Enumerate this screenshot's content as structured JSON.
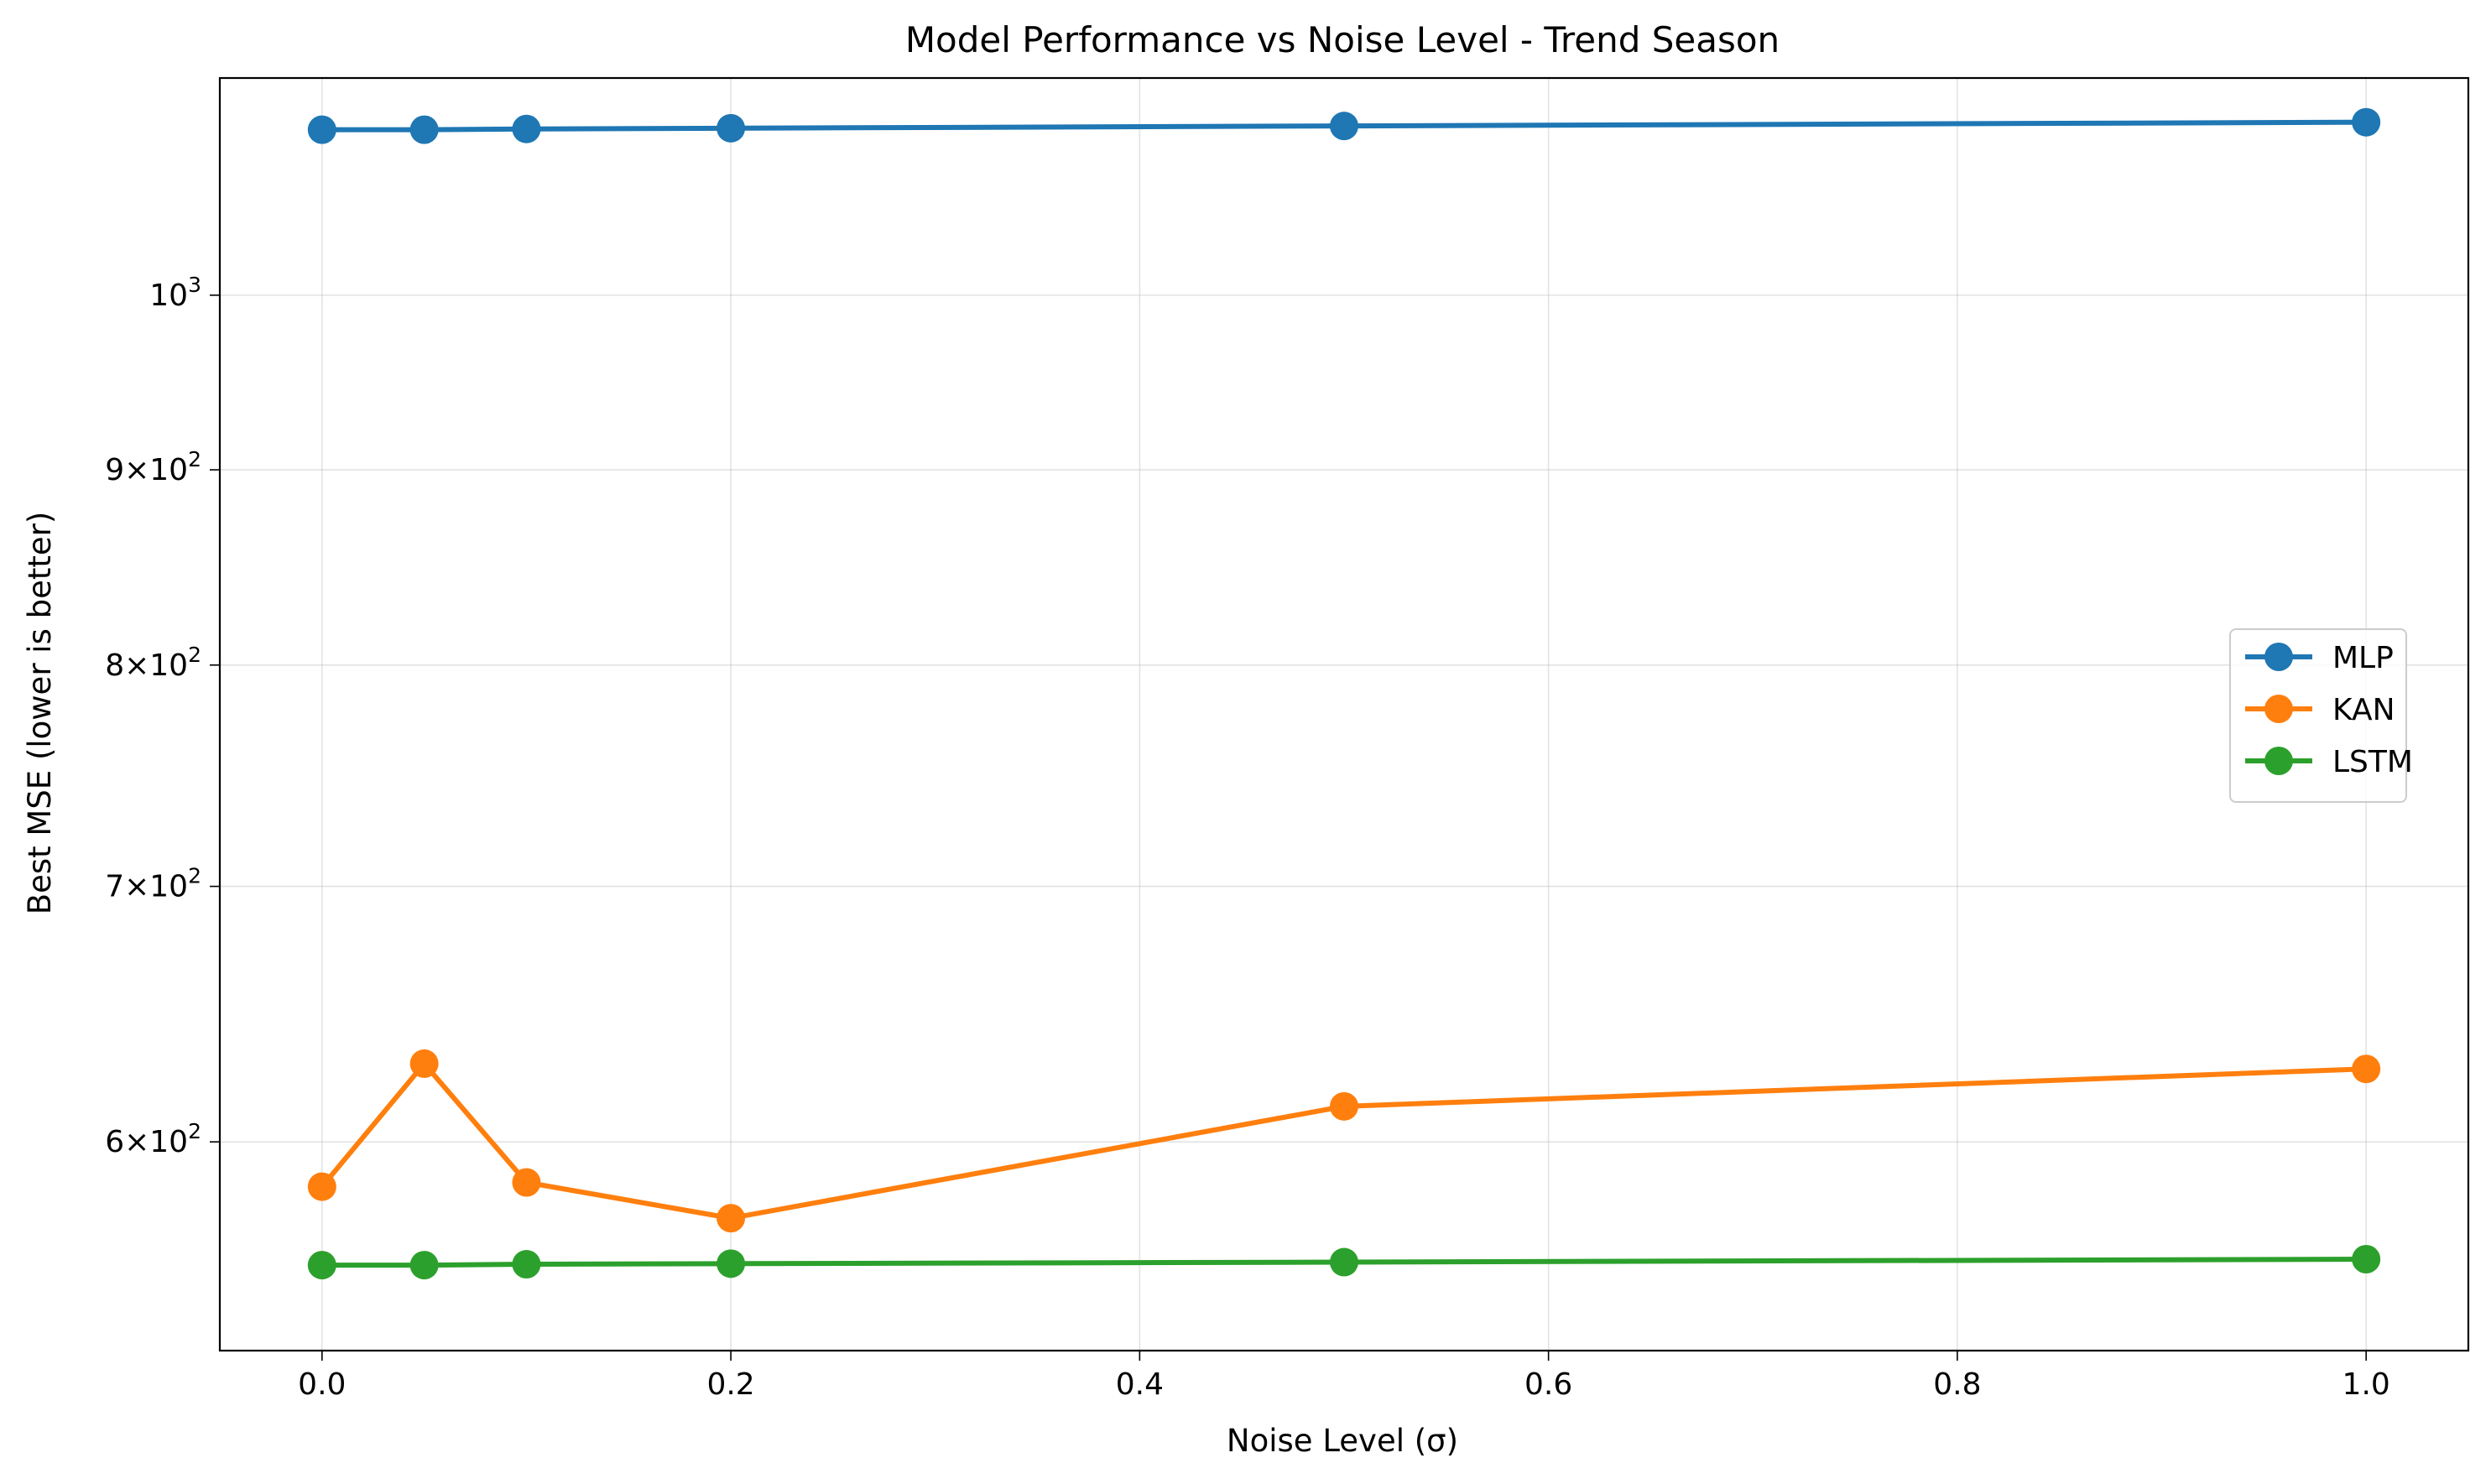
{
  "chart_data": {
    "type": "line",
    "title": "Model Performance vs Noise Level - Trend Season",
    "xlabel": "Noise Level (σ)",
    "ylabel": "Best MSE (lower is better)",
    "yscale": "log",
    "xlim": [
      -0.05,
      1.05
    ],
    "ylim": [
      529,
      1140
    ],
    "x": [
      0.0,
      0.05,
      0.1,
      0.2,
      0.5,
      1.0
    ],
    "x_ticks": [
      {
        "value": 0.0,
        "label": "0.0"
      },
      {
        "value": 0.2,
        "label": "0.2"
      },
      {
        "value": 0.4,
        "label": "0.4"
      },
      {
        "value": 0.6,
        "label": "0.6"
      },
      {
        "value": 0.8,
        "label": "0.8"
      },
      {
        "value": 1.0,
        "label": "1.0"
      }
    ],
    "y_ticks": [
      {
        "value": 600,
        "mantissa": "6",
        "base": "10",
        "exp": "2"
      },
      {
        "value": 700,
        "mantissa": "7",
        "base": "10",
        "exp": "2"
      },
      {
        "value": 800,
        "mantissa": "8",
        "base": "10",
        "exp": "2"
      },
      {
        "value": 900,
        "mantissa": "9",
        "base": "10",
        "exp": "2"
      },
      {
        "value": 1000,
        "mantissa": "",
        "base": "10",
        "exp": "3"
      }
    ],
    "grid": true,
    "legend_position": "center-right",
    "series": [
      {
        "name": "MLP",
        "color": "#1f77b4",
        "values": [
          1105,
          1105,
          1105.5,
          1106,
          1107.5,
          1110
        ]
      },
      {
        "name": "KAN",
        "color": "#ff7f0e",
        "values": [
          584,
          629,
          585.5,
          573,
          613,
          627
        ]
      },
      {
        "name": "LSTM",
        "color": "#2ca02c",
        "values": [
          557,
          557,
          557.3,
          557.5,
          558,
          559
        ]
      }
    ]
  }
}
